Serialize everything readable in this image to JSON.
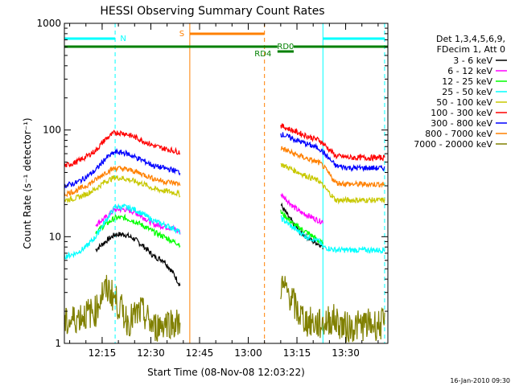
{
  "chart_data": {
    "type": "line",
    "title": "HESSI Observing Summary Count Rates",
    "xlabel": "Start Time (08-Nov-08 12:03:22)",
    "ylabel": "Count Rate (s⁻¹ detector⁻¹)",
    "x_range_minutes_utc": [
      "12:03:22",
      "13:43:00"
    ],
    "ylim": [
      1,
      1000
    ],
    "yscale": "log",
    "x_tick_labels": [
      "12:15",
      "12:30",
      "12:45",
      "13:00",
      "13:15",
      "13:30"
    ],
    "x_ticks": [
      "12:15",
      "12:30",
      "12:45",
      "13:00",
      "13:15",
      "13:30"
    ],
    "y_tick_labels": [
      "1",
      "10",
      "100",
      "1000"
    ],
    "y_ticks": [
      1,
      10,
      100,
      1000
    ],
    "legend": {
      "placement": "right",
      "header": [
        "Det 1,3,4,5,6,9,",
        "FDecim 1, Att 0"
      ]
    },
    "footer_date": "16-Jan-2010 09:30",
    "flags": [
      {
        "label": "N",
        "color": "#00ffff",
        "segments": [
          [
            "12:03:22",
            "12:19:00"
          ],
          [
            "13:23:00",
            "13:42:00"
          ]
        ]
      },
      {
        "label": "S",
        "color": "#ff8000",
        "segments": [
          [
            "12:42:00",
            "13:05:00"
          ]
        ]
      },
      {
        "label": "RD4",
        "color": "#008000",
        "segments": [
          [
            "12:03:22",
            "13:09:00"
          ]
        ]
      },
      {
        "label": "RD0",
        "color": "#008000",
        "segments": [
          [
            "13:09:00",
            "13:14:00"
          ]
        ]
      },
      {
        "label": "",
        "color": "#008000",
        "segments": [
          [
            "13:14:00",
            "13:43:00"
          ]
        ]
      }
    ],
    "vertical_markers": [
      {
        "color": "#00ffff",
        "style": "dashed",
        "x": "12:19:00"
      },
      {
        "color": "#ff8000",
        "style": "solid",
        "x": "12:42:00"
      },
      {
        "color": "#ff8000",
        "style": "dashed",
        "x": "13:05:00"
      },
      {
        "color": "#00ffff",
        "style": "solid",
        "x": "13:23:00"
      },
      {
        "color": "#00ffff",
        "style": "dashed",
        "x": "13:42:00"
      }
    ],
    "series": [
      {
        "name": "3 - 6 keV",
        "color": "#000000",
        "segments": [
          {
            "x": [
              "12:13:00",
              "12:16:00",
              "12:19:00",
              "12:22:00",
              "12:25:00",
              "12:28:00",
              "12:31:00",
              "12:34:00",
              "12:37:00",
              "12:39:00"
            ],
            "y": [
              7.5,
              9,
              10.5,
              10.5,
              9.5,
              8,
              6.5,
              6,
              4.5,
              3.5
            ]
          },
          {
            "x": [
              "13:10:00",
              "13:12:00",
              "13:14:00",
              "13:16:00",
              "13:18:00",
              "13:20:00",
              "13:22:00",
              "13:23:00"
            ],
            "y": [
              20,
              16,
              13,
              11,
              10,
              9,
              8.5,
              8
            ]
          }
        ]
      },
      {
        "name": "6 - 12 keV",
        "color": "#ff00ff",
        "segments": [
          {
            "x": [
              "12:13:00",
              "12:16:00",
              "12:19:00",
              "12:22:00",
              "12:25:00",
              "12:28:00",
              "12:31:00",
              "12:34:00",
              "12:37:00",
              "12:39:00"
            ],
            "y": [
              13,
              15,
              18,
              18,
              17,
              15,
              13,
              12.5,
              12,
              11
            ]
          },
          {
            "x": [
              "13:10:00",
              "13:12:00",
              "13:14:00",
              "13:16:00",
              "13:18:00",
              "13:20:00",
              "13:22:00",
              "13:23:00"
            ],
            "y": [
              25,
              22,
              19,
              17,
              16,
              15,
              14,
              14
            ]
          }
        ]
      },
      {
        "name": "12 - 25 keV",
        "color": "#00ff00",
        "segments": [
          {
            "x": [
              "12:13:00",
              "12:16:00",
              "12:19:00",
              "12:22:00",
              "12:25:00",
              "12:28:00",
              "12:31:00",
              "12:34:00",
              "12:37:00",
              "12:39:00"
            ],
            "y": [
              11,
              13,
              15,
              15,
              14,
              12.5,
              11,
              10,
              9,
              8.5
            ]
          },
          {
            "x": [
              "13:10:00",
              "13:12:00",
              "13:14:00",
              "13:16:00",
              "13:18:00",
              "13:20:00",
              "13:22:00",
              "13:23:00"
            ],
            "y": [
              17,
              15,
              13,
              12,
              11,
              10,
              9,
              8.5
            ]
          }
        ]
      },
      {
        "name": "25 - 50 keV",
        "color": "#00ffff",
        "segments": [
          {
            "x": [
              "12:03:22",
              "12:07:00",
              "12:10:00",
              "12:13:00",
              "12:16:00",
              "12:19:00",
              "12:22:00",
              "12:25:00",
              "12:28:00",
              "12:31:00",
              "12:34:00",
              "12:37:00",
              "12:39:00"
            ],
            "y": [
              6.5,
              7,
              8,
              10,
              14,
              19,
              19,
              18,
              16,
              14,
              13,
              12,
              11
            ]
          },
          {
            "x": [
              "13:10:00",
              "13:14:00",
              "13:18:00",
              "13:22:00",
              "13:23:00",
              "13:27:00",
              "13:32:00",
              "13:37:00",
              "13:42:00"
            ],
            "y": [
              15,
              12,
              10,
              9,
              8,
              7.5,
              7.5,
              7.5,
              7.5
            ]
          }
        ]
      },
      {
        "name": "50 - 100 keV",
        "color": "#c8c800",
        "segments": [
          {
            "x": [
              "12:03:22",
              "12:07:00",
              "12:10:00",
              "12:13:00",
              "12:16:00",
              "12:19:00",
              "12:22:00",
              "12:25:00",
              "12:28:00",
              "12:31:00",
              "12:34:00",
              "12:37:00",
              "12:39:00"
            ],
            "y": [
              22,
              23,
              25,
              28,
              33,
              36,
              35,
              33,
              31,
              28,
              27,
              26,
              25
            ]
          },
          {
            "x": [
              "13:10:00",
              "13:14:00",
              "13:18:00",
              "13:22:00",
              "13:23:00",
              "13:27:00",
              "13:32:00",
              "13:37:00",
              "13:42:00"
            ],
            "y": [
              48,
              42,
              37,
              33,
              30,
              22,
              22,
              22,
              22
            ]
          }
        ]
      },
      {
        "name": "100 - 300 keV",
        "color": "#ff0000",
        "segments": [
          {
            "x": [
              "12:03:22",
              "12:07:00",
              "12:10:00",
              "12:13:00",
              "12:16:00",
              "12:19:00",
              "12:22:00",
              "12:25:00",
              "12:28:00",
              "12:31:00",
              "12:34:00",
              "12:37:00",
              "12:39:00"
            ],
            "y": [
              46,
              50,
              56,
              64,
              82,
              95,
              93,
              86,
              78,
              71,
              67,
              64,
              62
            ]
          },
          {
            "x": [
              "13:10:00",
              "13:14:00",
              "13:18:00",
              "13:22:00",
              "13:23:00",
              "13:27:00",
              "13:32:00",
              "13:37:00",
              "13:42:00"
            ],
            "y": [
              110,
              98,
              88,
              80,
              75,
              57,
              55,
              55,
              55
            ]
          }
        ]
      },
      {
        "name": "300 - 800 keV",
        "color": "#0000ff",
        "segments": [
          {
            "x": [
              "12:03:22",
              "12:07:00",
              "12:10:00",
              "12:13:00",
              "12:16:00",
              "12:19:00",
              "12:22:00",
              "12:25:00",
              "12:28:00",
              "12:31:00",
              "12:34:00",
              "12:37:00",
              "12:39:00"
            ],
            "y": [
              30,
              32,
              36,
              42,
              54,
              62,
              61,
              56,
              51,
              46,
              44,
              42,
              40
            ]
          },
          {
            "x": [
              "13:10:00",
              "13:14:00",
              "13:18:00",
              "13:22:00",
              "13:23:00",
              "13:27:00",
              "13:32:00",
              "13:37:00",
              "13:42:00"
            ],
            "y": [
              92,
              82,
              74,
              67,
              62,
              46,
              44,
              44,
              44
            ]
          }
        ]
      },
      {
        "name": "800 - 7000 keV",
        "color": "#ff8000",
        "segments": [
          {
            "x": [
              "12:03:22",
              "12:07:00",
              "12:10:00",
              "12:13:00",
              "12:16:00",
              "12:19:00",
              "12:22:00",
              "12:25:00",
              "12:28:00",
              "12:31:00",
              "12:34:00",
              "12:37:00",
              "12:39:00"
            ],
            "y": [
              25,
              27,
              30,
              34,
              40,
              44,
              43,
              41,
              38,
              35,
              33,
              32,
              31
            ]
          },
          {
            "x": [
              "13:10:00",
              "13:14:00",
              "13:18:00",
              "13:22:00",
              "13:23:00",
              "13:27:00",
              "13:32:00",
              "13:37:00",
              "13:42:00"
            ],
            "y": [
              68,
              60,
              54,
              49,
              46,
              32,
              31,
              31,
              31
            ]
          }
        ]
      },
      {
        "name": "7000 - 20000 keV",
        "color": "#808000",
        "segments": [
          {
            "x": [
              "12:03:22",
              "12:08:00",
              "12:13:00",
              "12:15:00",
              "12:17:00",
              "12:19:00",
              "12:23:00",
              "12:27:00",
              "12:31:00",
              "12:35:00",
              "12:39:00"
            ],
            "y": [
              1.5,
              1.8,
              2.0,
              3.0,
              3.2,
              2.6,
              1.6,
              2.0,
              1.4,
              1.6,
              1.5
            ]
          },
          {
            "x": [
              "13:10:00",
              "13:13:00",
              "13:15:00",
              "13:18:00",
              "13:22:00",
              "13:26:00",
              "13:30:00",
              "13:36:00",
              "13:42:00"
            ],
            "y": [
              3.5,
              2.8,
              2.0,
              1.6,
              1.5,
              1.7,
              1.4,
              1.5,
              1.5
            ]
          }
        ]
      }
    ]
  }
}
